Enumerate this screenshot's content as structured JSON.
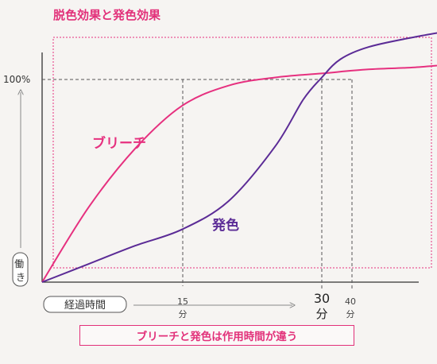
{
  "title": "脱色効果と発色効果",
  "caption": "ブリーチと発色は作用時間が違う",
  "colors": {
    "bleach": "#e6307f",
    "color_dev": "#5b2b96",
    "accent": "#e2317a",
    "text": "#333333",
    "guide": "#555555"
  },
  "chart_data": {
    "type": "line",
    "title": "脱色効果と発色効果",
    "xlabel": "経過時間",
    "ylabel": "働き",
    "x_ticks": [
      {
        "value": 15,
        "label": "15",
        "unit": "分"
      },
      {
        "value": 30,
        "label": "30",
        "unit": "分"
      },
      {
        "value": 40,
        "label": "40",
        "unit": "分"
      }
    ],
    "y_ticks": [
      {
        "value": 100,
        "label": "100%"
      }
    ],
    "xlim": [
      0,
      47
    ],
    "ylim": [
      0,
      120
    ],
    "grid": false,
    "legend": "inline labels",
    "series": [
      {
        "name": "ブリーチ",
        "x": [
          0,
          5,
          10,
          15,
          20,
          25,
          30,
          35,
          40,
          45
        ],
        "y": [
          0,
          37,
          66,
          87,
          97,
          101,
          103,
          105,
          106,
          108
        ]
      },
      {
        "name": "発色",
        "x": [
          0,
          5,
          10,
          15,
          20,
          25,
          28,
          30,
          32,
          35,
          40,
          45
        ],
        "y": [
          0,
          9,
          18,
          26,
          40,
          67,
          90,
          101,
          110,
          116,
          121,
          125
        ]
      }
    ]
  }
}
